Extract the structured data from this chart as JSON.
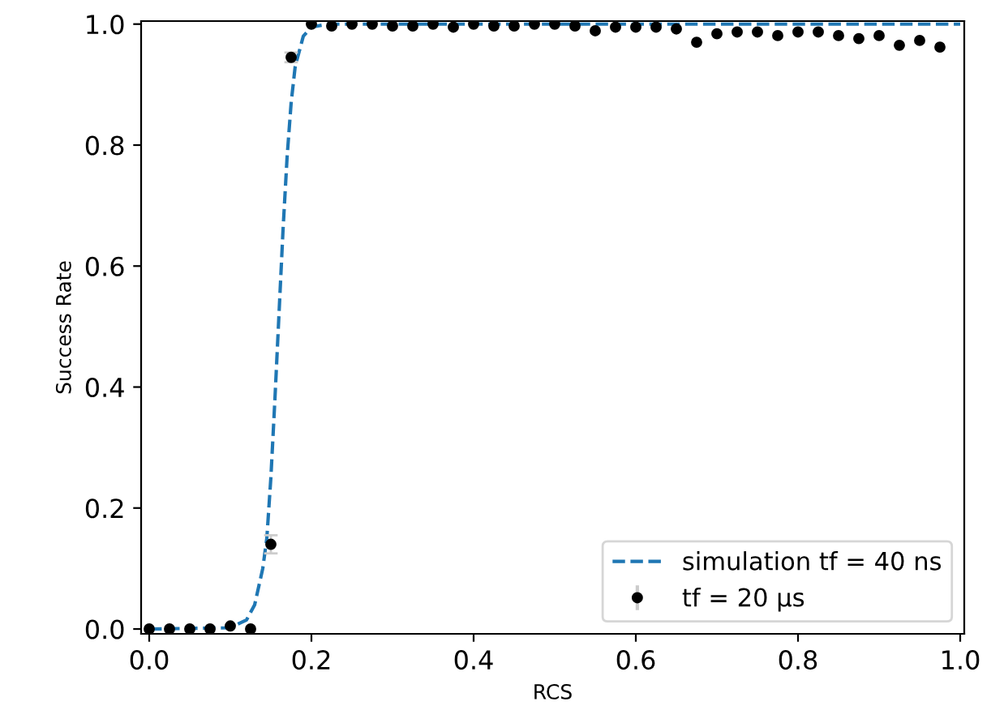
{
  "chart_data": {
    "type": "line",
    "xlabel": "RCS",
    "ylabel": "Success Rate",
    "xlim": [
      -0.01,
      1.005
    ],
    "ylim": [
      -0.008,
      1.005
    ],
    "xticks": [
      {
        "value": 0,
        "label": "0.0"
      },
      0.2,
      0.4,
      0.6,
      0.8,
      {
        "value": 1,
        "label": "1.0"
      }
    ],
    "yticks": [
      {
        "value": 0,
        "label": "0.0"
      },
      0.2,
      0.4,
      0.6,
      0.8,
      {
        "value": 1,
        "label": "1.0"
      }
    ],
    "grid": false,
    "legend": "bottom right",
    "series": [
      {
        "name": "simulation tf = 40 ns",
        "line_style": "dashed",
        "marker": "none",
        "color": "#1f77b4",
        "x": [
          0,
          0.1,
          0.12,
          0.13,
          0.14,
          0.145,
          0.15,
          0.155,
          0.16,
          0.165,
          0.17,
          0.175,
          0.18,
          0.19,
          0.2,
          0.22,
          1.0
        ],
        "values": [
          0,
          0.002,
          0.015,
          0.04,
          0.1,
          0.15,
          0.25,
          0.38,
          0.52,
          0.66,
          0.78,
          0.87,
          0.93,
          0.98,
          0.995,
          1.0,
          1.0
        ]
      },
      {
        "name": "tf = 20 µs",
        "type": "scatter",
        "marker": "circle",
        "color": "#000000",
        "x": [
          0,
          0.025,
          0.05,
          0.075,
          0.1,
          0.125,
          0.15,
          0.175,
          0.2,
          0.225,
          0.25,
          0.275,
          0.3,
          0.325,
          0.35,
          0.375,
          0.4,
          0.425,
          0.45,
          0.475,
          0.5,
          0.525,
          0.55,
          0.575,
          0.6,
          0.625,
          0.65,
          0.675,
          0.7,
          0.725,
          0.75,
          0.775,
          0.8,
          0.825,
          0.85,
          0.875,
          0.9,
          0.925,
          0.95,
          0.975
        ],
        "values": [
          0,
          0,
          0,
          0,
          0.005,
          0,
          0.14,
          0.945,
          1.0,
          0.997,
          1.0,
          1.0,
          0.997,
          0.997,
          1.0,
          0.995,
          1.0,
          0.997,
          0.997,
          1.0,
          1.0,
          0.997,
          0.989,
          0.995,
          0.995,
          0.995,
          0.992,
          0.97,
          0.984,
          0.987,
          0.987,
          0.981,
          0.987,
          0.987,
          0.981,
          0.976,
          0.981,
          0.965,
          0.973,
          0.962
        ],
        "errors": [
          null,
          null,
          null,
          null,
          null,
          null,
          0.015,
          0.008,
          null,
          null,
          null,
          null,
          null,
          null,
          null,
          null,
          null,
          null,
          null,
          null,
          null,
          null,
          null,
          null,
          null,
          null,
          null,
          null,
          null,
          null,
          null,
          null,
          null,
          null,
          null,
          null,
          null,
          null,
          null,
          null
        ]
      }
    ]
  }
}
